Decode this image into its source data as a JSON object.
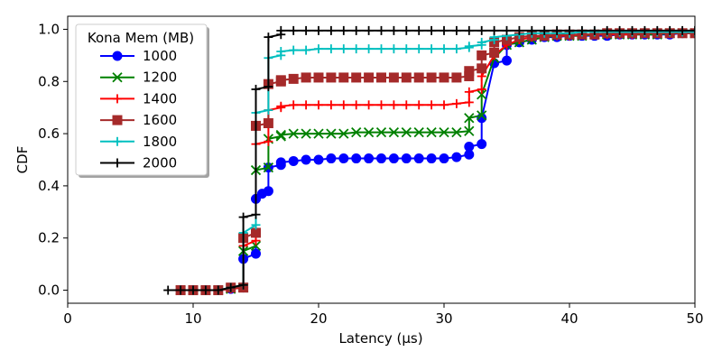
{
  "chart_data": {
    "type": "line",
    "xlabel": "Latency (µs)",
    "ylabel": "CDF",
    "xlim": [
      0,
      50
    ],
    "ylim": [
      -0.05,
      1.05
    ],
    "x_ticks": [
      "0",
      "10",
      "20",
      "30",
      "40",
      "50"
    ],
    "y_ticks": [
      "0.0",
      "0.2",
      "0.4",
      "0.6",
      "0.8",
      "1.0"
    ],
    "grid": false,
    "legend": {
      "title": "Kona Mem (MB)",
      "placement": "top-left"
    },
    "series": [
      {
        "name": "1000",
        "color": "#0000ff",
        "marker": "circle",
        "x": [
          9,
          10,
          11,
          12,
          13,
          14,
          14,
          15,
          15,
          15.5,
          16,
          16,
          17,
          17,
          18,
          19,
          20,
          21,
          22,
          23,
          24,
          25,
          26,
          27,
          28,
          29,
          30,
          31,
          32,
          32,
          33,
          33,
          34,
          35,
          35,
          36,
          37,
          38,
          39,
          40,
          41,
          42,
          43,
          44,
          45,
          46,
          47,
          48,
          49,
          50
        ],
        "y": [
          0,
          0,
          0,
          0,
          0.005,
          0.01,
          0.12,
          0.14,
          0.35,
          0.37,
          0.38,
          0.47,
          0.48,
          0.49,
          0.495,
          0.5,
          0.5,
          0.505,
          0.505,
          0.505,
          0.505,
          0.505,
          0.505,
          0.505,
          0.505,
          0.505,
          0.505,
          0.51,
          0.52,
          0.55,
          0.56,
          0.66,
          0.87,
          0.88,
          0.94,
          0.95,
          0.96,
          0.97,
          0.97,
          0.975,
          0.975,
          0.975,
          0.975,
          0.98,
          0.98,
          0.98,
          0.98,
          0.98,
          0.985,
          0.985
        ]
      },
      {
        "name": "1200",
        "color": "#008000",
        "marker": "x",
        "x": [
          9,
          10,
          11,
          12,
          13,
          14,
          14,
          15,
          15,
          16,
          16,
          17,
          17,
          18,
          19,
          20,
          21,
          22,
          23,
          24,
          25,
          26,
          27,
          28,
          29,
          30,
          31,
          32,
          32,
          33,
          33,
          34,
          35,
          36,
          37,
          38,
          39,
          40,
          41,
          42,
          43,
          44,
          45,
          46,
          47,
          48,
          49,
          50
        ],
        "y": [
          0,
          0,
          0,
          0,
          0.005,
          0.01,
          0.15,
          0.17,
          0.46,
          0.47,
          0.58,
          0.59,
          0.595,
          0.6,
          0.6,
          0.6,
          0.6,
          0.6,
          0.605,
          0.605,
          0.605,
          0.605,
          0.605,
          0.605,
          0.605,
          0.605,
          0.605,
          0.61,
          0.66,
          0.67,
          0.75,
          0.89,
          0.94,
          0.95,
          0.96,
          0.97,
          0.975,
          0.975,
          0.975,
          0.98,
          0.98,
          0.98,
          0.98,
          0.98,
          0.98,
          0.985,
          0.985,
          0.985
        ]
      },
      {
        "name": "1400",
        "color": "#ff0000",
        "marker": "plus",
        "x": [
          9,
          10,
          11,
          12,
          13,
          14,
          14,
          15,
          15,
          16,
          16,
          17,
          17,
          18,
          19,
          20,
          21,
          22,
          23,
          24,
          25,
          26,
          27,
          28,
          29,
          30,
          31,
          32,
          32,
          33,
          33,
          34,
          35,
          36,
          37,
          38,
          39,
          40,
          41,
          42,
          43,
          44,
          45,
          46,
          47,
          48,
          49,
          50
        ],
        "y": [
          0,
          0,
          0,
          0,
          0.005,
          0.01,
          0.17,
          0.19,
          0.56,
          0.57,
          0.69,
          0.7,
          0.705,
          0.71,
          0.71,
          0.71,
          0.71,
          0.71,
          0.71,
          0.71,
          0.71,
          0.71,
          0.71,
          0.71,
          0.71,
          0.71,
          0.715,
          0.72,
          0.76,
          0.77,
          0.82,
          0.9,
          0.94,
          0.96,
          0.97,
          0.975,
          0.975,
          0.975,
          0.98,
          0.98,
          0.98,
          0.98,
          0.98,
          0.985,
          0.985,
          0.985,
          0.985,
          0.985
        ]
      },
      {
        "name": "1600",
        "color": "#a52a2a",
        "marker": "square",
        "x": [
          9,
          10,
          11,
          12,
          13,
          14,
          14,
          15,
          15,
          16,
          16,
          17,
          17,
          18,
          19,
          20,
          21,
          22,
          23,
          24,
          25,
          26,
          27,
          28,
          29,
          30,
          31,
          32,
          32,
          33,
          33,
          34,
          34,
          35,
          36,
          37,
          38,
          39,
          40,
          41,
          42,
          43,
          44,
          45,
          46,
          47,
          48,
          49,
          50
        ],
        "y": [
          0,
          0,
          0,
          0,
          0.01,
          0.01,
          0.2,
          0.22,
          0.63,
          0.64,
          0.79,
          0.8,
          0.805,
          0.81,
          0.815,
          0.815,
          0.815,
          0.815,
          0.815,
          0.815,
          0.815,
          0.815,
          0.815,
          0.815,
          0.815,
          0.815,
          0.815,
          0.82,
          0.84,
          0.85,
          0.9,
          0.91,
          0.95,
          0.96,
          0.97,
          0.975,
          0.975,
          0.98,
          0.98,
          0.98,
          0.98,
          0.985,
          0.985,
          0.985,
          0.985,
          0.985,
          0.985,
          0.985,
          0.985
        ]
      },
      {
        "name": "1800",
        "color": "#00bfbf",
        "marker": "plus",
        "x": [
          9,
          10,
          11,
          12,
          13,
          14,
          14,
          15,
          15,
          16,
          16,
          17,
          17,
          18,
          19,
          20,
          21,
          22,
          23,
          24,
          25,
          26,
          27,
          28,
          29,
          30,
          31,
          32,
          32,
          33,
          33,
          34,
          34,
          35,
          36,
          37,
          38,
          39,
          40,
          41,
          42,
          43,
          44,
          45,
          46,
          47,
          48,
          49,
          50
        ],
        "y": [
          0,
          0,
          0,
          0,
          0.01,
          0.02,
          0.22,
          0.25,
          0.68,
          0.69,
          0.89,
          0.9,
          0.915,
          0.92,
          0.92,
          0.925,
          0.925,
          0.925,
          0.925,
          0.925,
          0.925,
          0.925,
          0.925,
          0.925,
          0.925,
          0.925,
          0.925,
          0.93,
          0.935,
          0.94,
          0.95,
          0.96,
          0.97,
          0.975,
          0.98,
          0.985,
          0.985,
          0.985,
          0.985,
          0.99,
          0.99,
          0.99,
          0.99,
          0.99,
          0.99,
          0.99,
          0.99,
          0.99,
          0.99
        ]
      },
      {
        "name": "2000",
        "color": "#000000",
        "marker": "plus",
        "x": [
          8,
          9,
          10,
          11,
          12,
          13,
          14,
          14,
          15,
          15,
          16,
          16,
          17,
          17,
          18,
          19,
          20,
          21,
          22,
          23,
          24,
          25,
          26,
          27,
          28,
          29,
          30,
          31,
          32,
          33,
          34,
          35,
          36,
          37,
          38,
          39,
          40,
          41,
          42,
          43,
          44,
          45,
          46,
          47,
          48,
          49,
          50
        ],
        "y": [
          0,
          0,
          0,
          0,
          0,
          0.01,
          0.02,
          0.28,
          0.29,
          0.77,
          0.78,
          0.97,
          0.98,
          0.995,
          0.995,
          0.995,
          0.995,
          0.995,
          0.995,
          0.995,
          0.995,
          0.995,
          0.995,
          0.995,
          0.995,
          0.995,
          0.995,
          0.995,
          0.995,
          0.995,
          0.995,
          0.995,
          0.995,
          0.995,
          0.995,
          0.995,
          0.995,
          0.995,
          0.995,
          0.995,
          0.995,
          0.995,
          0.995,
          0.995,
          0.995,
          0.995,
          0.995
        ]
      }
    ]
  }
}
